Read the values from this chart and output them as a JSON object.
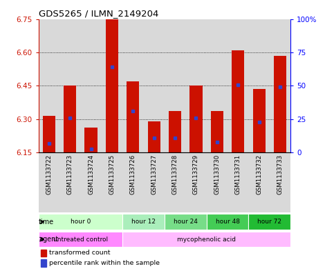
{
  "title": "GDS5265 / ILMN_2149204",
  "samples": [
    "GSM1133722",
    "GSM1133723",
    "GSM1133724",
    "GSM1133725",
    "GSM1133726",
    "GSM1133727",
    "GSM1133728",
    "GSM1133729",
    "GSM1133730",
    "GSM1133731",
    "GSM1133732",
    "GSM1133733"
  ],
  "bar_bottom": 6.15,
  "bar_tops": [
    6.315,
    6.45,
    6.26,
    6.75,
    6.47,
    6.29,
    6.335,
    6.45,
    6.335,
    6.61,
    6.435,
    6.585
  ],
  "blue_values": [
    6.19,
    6.305,
    6.165,
    6.535,
    6.335,
    6.215,
    6.215,
    6.305,
    6.195,
    6.455,
    6.285,
    6.445
  ],
  "ylim_left": [
    6.15,
    6.75
  ],
  "ylim_right": [
    0,
    100
  ],
  "yticks_left": [
    6.15,
    6.3,
    6.45,
    6.6,
    6.75
  ],
  "yticks_right": [
    0,
    25,
    50,
    75,
    100
  ],
  "ytick_labels_right": [
    "0",
    "25",
    "50",
    "75",
    "100%"
  ],
  "bar_color": "#CC1100",
  "blue_color": "#3344CC",
  "col_bg_color": "#BBBBBB",
  "time_groups": [
    {
      "label": "hour 0",
      "start": 0,
      "end": 4,
      "color": "#CCFFCC"
    },
    {
      "label": "hour 12",
      "start": 4,
      "end": 6,
      "color": "#AAEEBB"
    },
    {
      "label": "hour 24",
      "start": 6,
      "end": 8,
      "color": "#77DD88"
    },
    {
      "label": "hour 48",
      "start": 8,
      "end": 10,
      "color": "#44CC55"
    },
    {
      "label": "hour 72",
      "start": 10,
      "end": 12,
      "color": "#22BB33"
    }
  ],
  "agent_groups": [
    {
      "label": "untreated control",
      "start": 0,
      "end": 4,
      "color": "#FF88FF"
    },
    {
      "label": "mycophenolic acid",
      "start": 4,
      "end": 12,
      "color": "#FFBBFF"
    }
  ],
  "legend": [
    {
      "label": "transformed count",
      "color": "#CC1100",
      "marker": "square"
    },
    {
      "label": "percentile rank within the sample",
      "color": "#3344CC",
      "marker": "square"
    }
  ]
}
